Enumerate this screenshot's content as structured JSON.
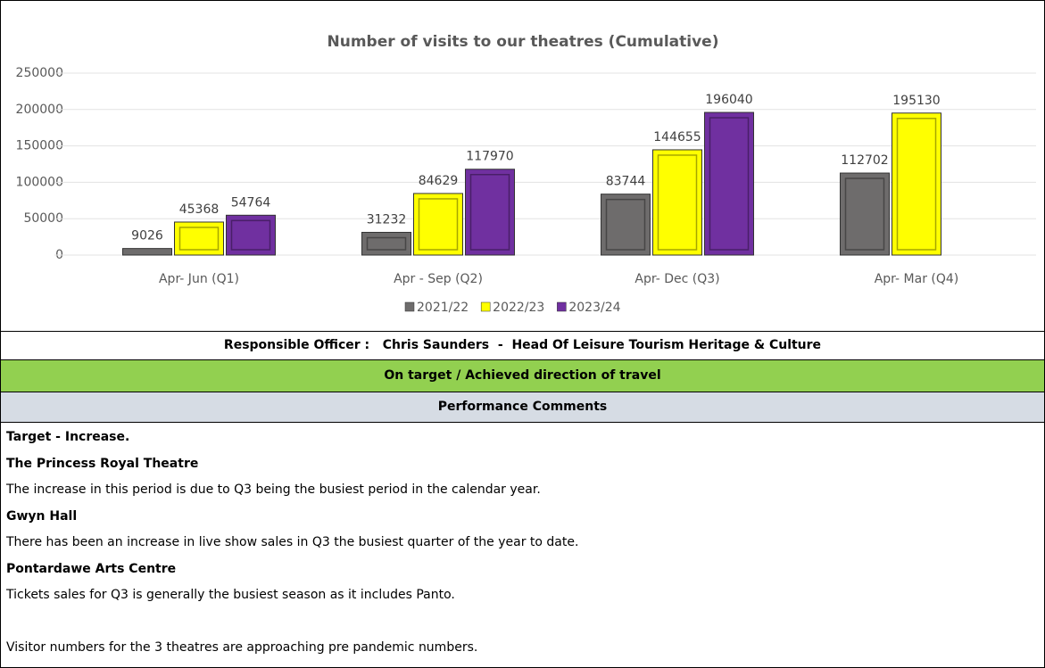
{
  "chart_data": {
    "type": "bar",
    "title": "Number of visits to our theatres (Cumulative)",
    "categories": [
      "Apr- Jun  (Q1)",
      "Apr - Sep  (Q2)",
      "Apr- Dec  (Q3)",
      "Apr- Mar  (Q4)"
    ],
    "series": [
      {
        "name": "2021/22",
        "color": "#6e6c6c",
        "values": [
          9026,
          31232,
          83744,
          112702
        ]
      },
      {
        "name": "2022/23",
        "color": "#ffff00",
        "values": [
          45368,
          84629,
          144655,
          195130
        ]
      },
      {
        "name": "2023/24",
        "color": "#7030a0",
        "values": [
          54764,
          117970,
          196040,
          null
        ]
      }
    ],
    "ylim": [
      0,
      250000
    ],
    "yticks": [
      0,
      50000,
      100000,
      150000,
      200000,
      250000
    ],
    "grid": true,
    "legend": "bottom"
  },
  "officer": "Responsible Officer :   Chris Saunders  -  Head Of Leisure Tourism Heritage & Culture",
  "status": "On target / Achieved direction of travel",
  "comments": {
    "heading": "Performance Comments",
    "target": "Target - Increase.",
    "sections": [
      {
        "heading": "The Princess Royal Theatre",
        "text": "The increase in this period is due to Q3 being the busiest period in the calendar year."
      },
      {
        "heading": "Gwyn Hall",
        "text": "There has been an increase in live show sales in Q3 the busiest quarter of the year to date."
      },
      {
        "heading": "Pontardawe Arts Centre",
        "text": "Tickets sales for Q3 is generally the busiest season as it includes Panto."
      }
    ],
    "note": "Visitor numbers for the 3 theatres are approaching pre pandemic numbers."
  }
}
